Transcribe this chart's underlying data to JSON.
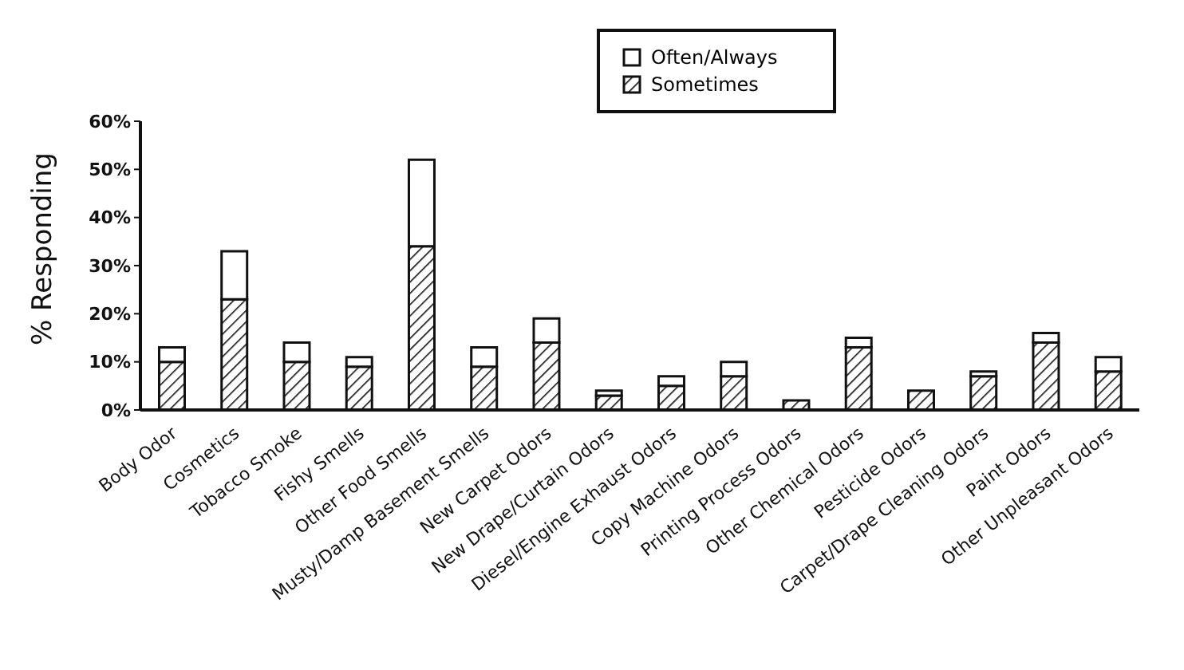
{
  "chart_data": {
    "type": "bar",
    "stacked": true,
    "ylabel": "% Responding",
    "categories": [
      "Body Odor",
      "Cosmetics",
      "Tobacco Smoke",
      "Fishy Smells",
      "Other Food Smells",
      "Musty/Damp Basement Smells",
      "New Carpet Odors",
      "New Drape/Curtain Odors",
      "Diesel/Engine Exhaust Odors",
      "Copy Machine Odors",
      "Printing Process Odors",
      "Other Chemical Odors",
      "Pesticide Odors",
      "Carpet/Drape Cleaning Odors",
      "Paint Odors",
      "Other Unpleasant Odors"
    ],
    "series": [
      {
        "name": "Sometimes",
        "color": "#111111",
        "values": [
          10,
          23,
          10,
          9,
          34,
          9,
          14,
          3,
          5,
          7,
          2,
          13,
          4,
          7,
          14,
          8
        ]
      },
      {
        "name": "Often/Always",
        "color": "#ffffff",
        "values": [
          3,
          10,
          4,
          2,
          18,
          4,
          5,
          1,
          2,
          3,
          0,
          2,
          0,
          1,
          2,
          3
        ]
      }
    ],
    "ylim": [
      0,
      60
    ],
    "yticks": [
      {
        "value": 0,
        "label": "0%"
      },
      {
        "value": 10,
        "label": "10%"
      },
      {
        "value": 20,
        "label": "20%"
      },
      {
        "value": 30,
        "label": "30%"
      },
      {
        "value": 40,
        "label": "40%"
      },
      {
        "value": 50,
        "label": "50%"
      },
      {
        "value": 60,
        "label": "60%"
      }
    ],
    "grid": false,
    "legend": "top right"
  }
}
